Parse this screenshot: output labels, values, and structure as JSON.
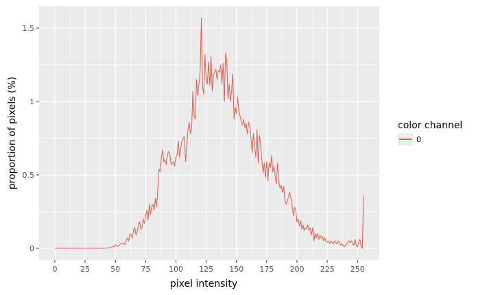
{
  "chart_data": {
    "type": "line",
    "title": "",
    "xlabel": "pixel intensity",
    "ylabel": "proportion of pixels (%)",
    "xlim": [
      -13,
      268
    ],
    "ylim": [
      -0.08,
      1.65
    ],
    "xticks": [
      0,
      25,
      50,
      75,
      100,
      125,
      150,
      175,
      200,
      225,
      250
    ],
    "yticks": [
      0,
      0.5,
      1,
      1.5
    ],
    "ytick_labels": [
      "0",
      "0.5",
      "1",
      "1.5"
    ],
    "grid": true,
    "legend": {
      "title": "color channel",
      "position": "right"
    },
    "colors": {
      "panel": "#ebebeb",
      "grid": "#ffffff",
      "line": "#e05b4b"
    },
    "series": [
      {
        "name": "0",
        "points": [
          [
            0,
            0
          ],
          [
            40,
            0
          ],
          [
            44,
            0.003
          ],
          [
            46,
            0.005
          ],
          [
            48,
            0.012
          ],
          [
            49,
            0.008
          ],
          [
            50,
            0.025
          ],
          [
            51,
            0.018
          ],
          [
            52,
            0.012
          ],
          [
            53,
            0.02
          ],
          [
            54,
            0.032
          ],
          [
            55,
            0.03
          ],
          [
            56,
            0.028
          ],
          [
            57,
            0.035
          ],
          [
            58,
            0.024
          ],
          [
            59,
            0.055
          ],
          [
            60,
            0.07
          ],
          [
            61,
            0.05
          ],
          [
            62,
            0.1
          ],
          [
            63,
            0.09
          ],
          [
            64,
            0.07
          ],
          [
            65,
            0.12
          ],
          [
            66,
            0.14
          ],
          [
            67,
            0.09
          ],
          [
            68,
            0.11
          ],
          [
            69,
            0.16
          ],
          [
            70,
            0.18
          ],
          [
            71,
            0.13
          ],
          [
            72,
            0.14
          ],
          [
            73,
            0.2
          ],
          [
            74,
            0.17
          ],
          [
            75,
            0.22
          ],
          [
            76,
            0.26
          ],
          [
            77,
            0.19
          ],
          [
            78,
            0.3
          ],
          [
            79,
            0.23
          ],
          [
            80,
            0.28
          ],
          [
            81,
            0.3
          ],
          [
            82,
            0.26
          ],
          [
            83,
            0.34
          ],
          [
            84,
            0.28
          ],
          [
            85,
            0.4
          ],
          [
            86,
            0.54
          ],
          [
            87,
            0.52
          ],
          [
            88,
            0.62
          ],
          [
            89,
            0.67
          ],
          [
            90,
            0.59
          ],
          [
            91,
            0.6
          ],
          [
            92,
            0.57
          ],
          [
            93,
            0.64
          ],
          [
            94,
            0.66
          ],
          [
            95,
            0.64
          ],
          [
            96,
            0.57
          ],
          [
            97,
            0.58
          ],
          [
            98,
            0.59
          ],
          [
            99,
            0.56
          ],
          [
            100,
            0.62
          ],
          [
            101,
            0.64
          ],
          [
            102,
            0.73
          ],
          [
            103,
            0.62
          ],
          [
            104,
            0.68
          ],
          [
            105,
            0.73
          ],
          [
            106,
            0.75
          ],
          [
            107,
            0.76
          ],
          [
            108,
            0.59
          ],
          [
            109,
            0.7
          ],
          [
            110,
            0.81
          ],
          [
            111,
            0.86
          ],
          [
            112,
            0.78
          ],
          [
            113,
            0.82
          ],
          [
            114,
            1.07
          ],
          [
            115,
            0.9
          ],
          [
            116,
            0.88
          ],
          [
            117,
            1.15
          ],
          [
            118,
            1.04
          ],
          [
            119,
            1.12
          ],
          [
            120,
            1.2
          ],
          [
            121,
            1.57
          ],
          [
            122,
            1.1
          ],
          [
            123,
            1.05
          ],
          [
            124,
            1.32
          ],
          [
            125,
            1.14
          ],
          [
            126,
            1.12
          ],
          [
            127,
            1.27
          ],
          [
            128,
            1.11
          ],
          [
            129,
            1.31
          ],
          [
            130,
            1.07
          ],
          [
            131,
            1.18
          ],
          [
            132,
            1.2
          ],
          [
            133,
            1.22
          ],
          [
            134,
            1.15
          ],
          [
            135,
            1.21
          ],
          [
            136,
            1.2
          ],
          [
            137,
            1.25
          ],
          [
            138,
            1.12
          ],
          [
            139,
            1.26
          ],
          [
            140,
            1.0
          ],
          [
            141,
            1.33
          ],
          [
            142,
            1.28
          ],
          [
            143,
            1.02
          ],
          [
            144,
            1.12
          ],
          [
            145,
            1.0
          ],
          [
            146,
            1.07
          ],
          [
            147,
            1.19
          ],
          [
            148,
            0.88
          ],
          [
            149,
            0.96
          ],
          [
            150,
            0.92
          ],
          [
            151,
            1.03
          ],
          [
            152,
            0.94
          ],
          [
            153,
            0.9
          ],
          [
            154,
            0.86
          ],
          [
            155,
            0.84
          ],
          [
            156,
            0.88
          ],
          [
            157,
            0.82
          ],
          [
            158,
            0.85
          ],
          [
            159,
            0.78
          ],
          [
            160,
            0.86
          ],
          [
            161,
            0.83
          ],
          [
            162,
            0.75
          ],
          [
            163,
            0.65
          ],
          [
            164,
            0.78
          ],
          [
            165,
            0.7
          ],
          [
            166,
            0.62
          ],
          [
            167,
            0.81
          ],
          [
            168,
            0.58
          ],
          [
            169,
            0.77
          ],
          [
            170,
            0.7
          ],
          [
            171,
            0.6
          ],
          [
            172,
            0.51
          ],
          [
            173,
            0.58
          ],
          [
            174,
            0.48
          ],
          [
            175,
            0.59
          ],
          [
            176,
            0.46
          ],
          [
            177,
            0.58
          ],
          [
            178,
            0.55
          ],
          [
            179,
            0.63
          ],
          [
            180,
            0.52
          ],
          [
            181,
            0.56
          ],
          [
            182,
            0.49
          ],
          [
            183,
            0.44
          ],
          [
            184,
            0.58
          ],
          [
            185,
            0.45
          ],
          [
            186,
            0.41
          ],
          [
            187,
            0.43
          ],
          [
            188,
            0.38
          ],
          [
            189,
            0.42
          ],
          [
            190,
            0.33
          ],
          [
            191,
            0.3
          ],
          [
            192,
            0.32
          ],
          [
            193,
            0.35
          ],
          [
            194,
            0.38
          ],
          [
            195,
            0.34
          ],
          [
            196,
            0.29
          ],
          [
            197,
            0.22
          ],
          [
            198,
            0.28
          ],
          [
            199,
            0.26
          ],
          [
            200,
            0.18
          ],
          [
            201,
            0.2
          ],
          [
            202,
            0.15
          ],
          [
            203,
            0.19
          ],
          [
            204,
            0.13
          ],
          [
            205,
            0.16
          ],
          [
            206,
            0.12
          ],
          [
            207,
            0.14
          ],
          [
            208,
            0.13
          ],
          [
            209,
            0.16
          ],
          [
            210,
            0.12
          ],
          [
            211,
            0.14
          ],
          [
            212,
            0.09
          ],
          [
            213,
            0.14
          ],
          [
            214,
            0.05
          ],
          [
            215,
            0.1
          ],
          [
            216,
            0.07
          ],
          [
            217,
            0.1
          ],
          [
            218,
            0.06
          ],
          [
            219,
            0.09
          ],
          [
            220,
            0.07
          ],
          [
            221,
            0.08
          ],
          [
            222,
            0.05
          ],
          [
            223,
            0.07
          ],
          [
            224,
            0.05
          ],
          [
            225,
            0.04
          ],
          [
            226,
            0.05
          ],
          [
            227,
            0.03
          ],
          [
            228,
            0.05
          ],
          [
            229,
            0.04
          ],
          [
            230,
            0.03
          ],
          [
            231,
            0.05
          ],
          [
            232,
            0.04
          ],
          [
            233,
            0.03
          ],
          [
            234,
            0.05
          ],
          [
            235,
            0.04
          ],
          [
            236,
            0.02
          ],
          [
            237,
            0.03
          ],
          [
            238,
            0.02
          ],
          [
            239,
            0.01
          ],
          [
            240,
            0.02
          ],
          [
            241,
            0.03
          ],
          [
            242,
            0.04
          ],
          [
            243,
            0.05
          ],
          [
            244,
            0.04
          ],
          [
            245,
            0.05
          ],
          [
            246,
            0.03
          ],
          [
            247,
            0.02
          ],
          [
            248,
            0.06
          ],
          [
            249,
            0.02
          ],
          [
            250,
            0.01
          ],
          [
            251,
            0.04
          ],
          [
            252,
            0.06
          ],
          [
            253,
            0.01
          ],
          [
            254,
            0.0
          ],
          [
            255,
            0.36
          ]
        ]
      }
    ]
  }
}
